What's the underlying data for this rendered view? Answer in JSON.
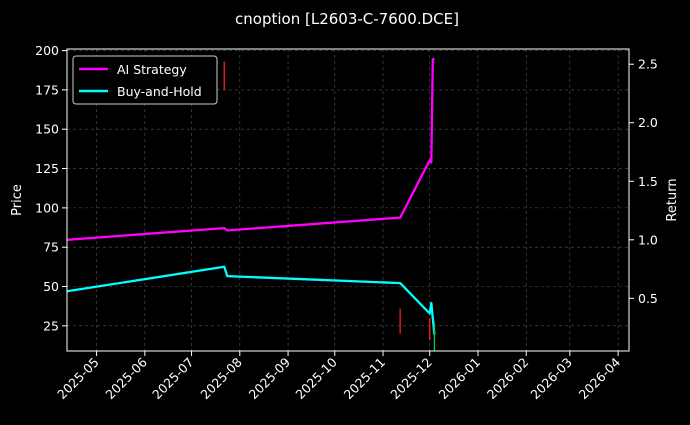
{
  "chart_data": {
    "type": "line",
    "title": "cnoption [L2603-C-7600.DCE]",
    "ylabel": "Price",
    "y2label": "Return",
    "x_ticks": [
      "2025-05",
      "2025-06",
      "2025-07",
      "2025-08",
      "2025-09",
      "2025-10",
      "2025-11",
      "2025-12",
      "2026-01",
      "2026-02",
      "2026-03",
      "2026-04"
    ],
    "xlim": [
      "2025-04-12",
      "2026-04-08"
    ],
    "ylim": [
      9,
      201
    ],
    "y_ticks": [
      25,
      50,
      75,
      100,
      125,
      150,
      175,
      200
    ],
    "y2lim": [
      0.05,
      2.63
    ],
    "y2_ticks": [
      "0.5",
      "1.0",
      "1.5",
      "2.0",
      "2.5"
    ],
    "grid": true,
    "legend_position": "top-left",
    "series": [
      {
        "name": "AI Strategy",
        "axis": "right",
        "color": "#ff00ff",
        "points": [
          {
            "x": "2025-04-12",
            "y": 1.0
          },
          {
            "x": "2025-07-22",
            "y": 1.1
          },
          {
            "x": "2025-07-24",
            "y": 1.08
          },
          {
            "x": "2025-11-12",
            "y": 1.19
          },
          {
            "x": "2025-12-01",
            "y": 1.68
          },
          {
            "x": "2025-12-02",
            "y": 1.66
          },
          {
            "x": "2025-12-03",
            "y": 2.54
          },
          {
            "x": "2025-12-04",
            "y": 2.55
          }
        ]
      },
      {
        "name": "Buy-and-Hold",
        "axis": "right",
        "color": "#00ffff",
        "points": [
          {
            "x": "2025-04-12",
            "y": 0.56
          },
          {
            "x": "2025-07-22",
            "y": 0.77
          },
          {
            "x": "2025-07-24",
            "y": 0.69
          },
          {
            "x": "2025-11-12",
            "y": 0.63
          },
          {
            "x": "2025-12-01",
            "y": 0.37
          },
          {
            "x": "2025-12-02",
            "y": 0.46
          },
          {
            "x": "2025-12-04",
            "y": 0.19
          }
        ]
      }
    ],
    "markers": [
      {
        "x": "2025-07-22",
        "y_low": 175,
        "y_high": 193,
        "color": "#ff2020"
      },
      {
        "x": "2025-11-12",
        "y_low": 20,
        "y_high": 36,
        "color": "#ff2020"
      },
      {
        "x": "2025-12-01",
        "y_low": 16,
        "y_high": 30,
        "color": "#ff2020"
      },
      {
        "x": "2025-12-04",
        "y_low": 9,
        "y_high": 27,
        "color": "#00cc55"
      }
    ]
  }
}
